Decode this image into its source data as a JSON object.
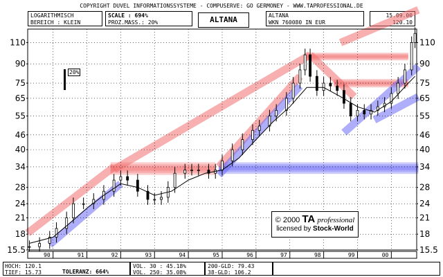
{
  "header": {
    "copyright": "COPYRIGHT  DUVEL INFORMATIONSSYSTEME - COMPUSERVE: GO GERMONEY - WWW.TAPROFESSIONAL.DE",
    "scale_mode": "LOGARITHMISCH",
    "range": "BEREICH : KLEIN",
    "scale_label": "SCALE : 694%",
    "prozmass": "PROZ.MASS.: 20%",
    "title": "ALTANA",
    "name_right": "ALTANA",
    "wkn": "WKN 760080    IN EUR",
    "date": "15.09.00",
    "last_price": "120.10",
    "percent_marker": "20%"
  },
  "footer": {
    "hoch": "HOCH: 120.1",
    "tief": "TIEF: 15.73",
    "toleranz": "TOLERANZ: 664%",
    "vol30": "VOL. 30 : 45.18%",
    "vol250": "VOL. 250: 35.08%",
    "gld200": "200-GLD: 79.43",
    "gld38": "38-GLD: 106.2"
  },
  "credit": {
    "line1_prefix": "© 2000",
    "line1_brand": "TA",
    "line1_suffix": "professional",
    "line2_prefix": "licensed by",
    "line2_brand": "Stock-World"
  },
  "colors": {
    "up_channel": "#f26d6d",
    "down_channel": "#6c6cf5",
    "candle": "#000000",
    "background": "#ffffff",
    "grid": "#000000"
  },
  "chart_data": {
    "type": "line",
    "title": "ALTANA",
    "scale": "log",
    "currency": "EUR",
    "ylim": [
      15.5,
      125
    ],
    "y_ticks": [
      15.5,
      18,
      21,
      24,
      28,
      34,
      40,
      46,
      55,
      65,
      75,
      90,
      110
    ],
    "x_ticks": [
      "90",
      "91",
      "92",
      "93",
      "94",
      "95",
      "96",
      "97",
      "98",
      "99",
      "00"
    ],
    "x_range": [
      1989.25,
      2000.75
    ],
    "series": [
      {
        "style": "candlestick",
        "x": [
          1989.3,
          1989.6,
          1989.9,
          1990.1,
          1990.4,
          1990.6,
          1990.9,
          1991.2,
          1991.5,
          1991.8,
          1992.0,
          1992.2,
          1992.5,
          1992.8,
          1993.0,
          1993.2,
          1993.4,
          1993.6,
          1993.9,
          1994.1,
          1994.3,
          1994.6,
          1994.8,
          1995.0,
          1995.3,
          1995.6,
          1995.9,
          1996.1,
          1996.4,
          1996.6,
          1996.9,
          1997.1,
          1997.3,
          1997.45,
          1997.6,
          1997.8,
          1998.0,
          1998.2,
          1998.4,
          1998.6,
          1998.8,
          1999.0,
          1999.2,
          1999.4,
          1999.6,
          1999.8,
          2000.0,
          2000.2,
          2000.4,
          2000.6,
          2000.7
        ],
        "values": [
          16,
          16.5,
          17.5,
          19,
          21,
          24,
          24,
          25,
          27,
          30,
          31,
          30,
          27,
          25,
          25,
          25.5,
          28,
          32,
          33,
          33,
          33,
          32,
          33,
          36,
          40,
          44,
          48,
          50,
          55,
          58,
          65,
          75,
          85,
          98,
          80,
          70,
          75,
          73,
          70,
          62,
          55,
          58,
          56,
          58,
          60,
          62,
          68,
          75,
          85,
          110,
          120
        ]
      },
      {
        "style": "line",
        "x": [
          1989.3,
          1990.0,
          1990.5,
          1991.0,
          1991.5,
          1992.0,
          1992.5,
          1993.0,
          1993.5,
          1994.0,
          1994.5,
          1995.0,
          1995.5,
          1996.0,
          1996.5,
          1997.0,
          1997.5,
          1998.0,
          1998.5,
          1999.0,
          1999.5,
          2000.0,
          2000.5,
          2000.7
        ],
        "values": [
          16.5,
          17.5,
          20,
          23,
          26,
          29,
          28,
          26,
          27,
          30,
          32,
          33,
          37,
          44,
          52,
          60,
          72,
          72,
          66,
          60,
          57,
          63,
          75,
          80
        ]
      }
    ],
    "channels": [
      {
        "kind": "up",
        "from": [
          1989.25,
          18.2
        ],
        "to": [
          1991.8,
          34
        ]
      },
      {
        "kind": "down",
        "from": [
          1989.9,
          16.3
        ],
        "to": [
          1992.0,
          29
        ]
      },
      {
        "kind": "up",
        "from": [
          1991.8,
          33.2
        ],
        "to": [
          1997.6,
          98
        ]
      },
      {
        "kind": "up",
        "from": [
          1994.9,
          34
        ],
        "to": [
          1997.3,
          80
        ]
      },
      {
        "kind": "down",
        "from": [
          1994.9,
          31.5
        ],
        "to": [
          1997.3,
          73
        ]
      },
      {
        "kind": "up",
        "from": [
          1997.6,
          98
        ],
        "to": [
          1998.9,
          66
        ]
      },
      {
        "kind": "down",
        "from": [
          1998.6,
          47
        ],
        "to": [
          2000.8,
          88
        ]
      },
      {
        "kind": "down",
        "from": [
          1999.5,
          53
        ],
        "to": [
          2000.8,
          66
        ]
      },
      {
        "kind": "up",
        "from": [
          1998.5,
          110
        ],
        "to": [
          2000.8,
          150
        ]
      }
    ],
    "zones": [
      {
        "kind": "up",
        "y1": 31.5,
        "y2": 35.5,
        "x_from": 1991.7,
        "x_to": 1994.8
      },
      {
        "kind": "down",
        "y1": 31.8,
        "y2": 35.5,
        "x_from": 1994.9,
        "x_to": 2000.8
      },
      {
        "kind": "up",
        "y1": 93,
        "y2": 100,
        "x_from": 1997.5,
        "x_to": 2000.5
      },
      {
        "kind": "up",
        "y1": 72,
        "y2": 78,
        "x_from": 1998.3,
        "x_to": 2000.5
      }
    ]
  }
}
